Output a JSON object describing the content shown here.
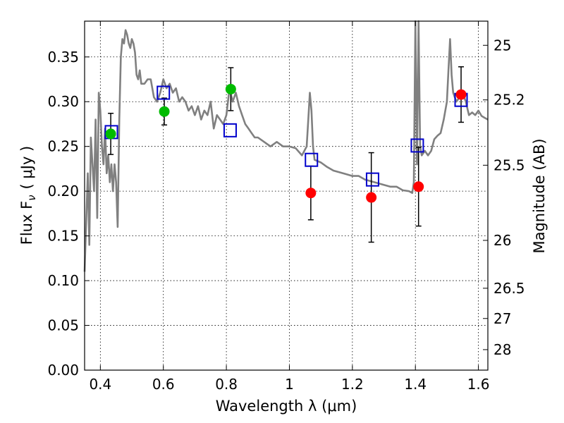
{
  "chart_data": {
    "type": "scatter",
    "xlabel": "Wavelength  λ (μm)",
    "ylabel_left": "Flux  F",
    "ylabel_left_sub": "ν",
    "ylabel_left_unit": "(  μJy )",
    "ylabel_right": "Magnitude (AB)",
    "xlim": [
      0.35,
      1.63
    ],
    "ylim": [
      0.0,
      0.39
    ],
    "grid": true,
    "x_ticks": [
      {
        "value": 0.4,
        "label": "0.4"
      },
      {
        "value": 0.6,
        "label": "0.6"
      },
      {
        "value": 0.8,
        "label": "0.8"
      },
      {
        "value": 1.0,
        "label": "1"
      },
      {
        "value": 1.2,
        "label": "1.2"
      },
      {
        "value": 1.4,
        "label": "1.4"
      },
      {
        "value": 1.6,
        "label": "1.6"
      }
    ],
    "y_ticks": [
      {
        "value": 0.0,
        "label": "0.00"
      },
      {
        "value": 0.05,
        "label": "0.05"
      },
      {
        "value": 0.1,
        "label": "0.10"
      },
      {
        "value": 0.15,
        "label": "0.15"
      },
      {
        "value": 0.2,
        "label": "0.20"
      },
      {
        "value": 0.25,
        "label": "0.25"
      },
      {
        "value": 0.3,
        "label": "0.30"
      },
      {
        "value": 0.35,
        "label": "0.35"
      }
    ],
    "y_ticks_right": [
      {
        "flux": 0.363,
        "label": "25"
      },
      {
        "flux": 0.302,
        "label": "25.2"
      },
      {
        "flux": 0.229,
        "label": "25.5"
      },
      {
        "flux": 0.145,
        "label": "26"
      },
      {
        "flux": 0.0915,
        "label": "26.5"
      },
      {
        "flux": 0.0577,
        "label": "27"
      },
      {
        "flux": 0.0229,
        "label": "28"
      }
    ],
    "series": [
      {
        "name": "model-spectrum",
        "kind": "line",
        "color": "#808080",
        "x": [
          0.35,
          0.36,
          0.365,
          0.37,
          0.375,
          0.38,
          0.385,
          0.39,
          0.395,
          0.4,
          0.405,
          0.41,
          0.415,
          0.42,
          0.425,
          0.43,
          0.435,
          0.44,
          0.445,
          0.45,
          0.455,
          0.46,
          0.465,
          0.47,
          0.475,
          0.48,
          0.485,
          0.49,
          0.495,
          0.5,
          0.505,
          0.51,
          0.515,
          0.52,
          0.525,
          0.53,
          0.54,
          0.55,
          0.56,
          0.57,
          0.58,
          0.59,
          0.6,
          0.61,
          0.62,
          0.63,
          0.64,
          0.65,
          0.66,
          0.67,
          0.68,
          0.69,
          0.7,
          0.71,
          0.72,
          0.73,
          0.74,
          0.75,
          0.76,
          0.77,
          0.78,
          0.79,
          0.8,
          0.81,
          0.82,
          0.83,
          0.84,
          0.85,
          0.86,
          0.87,
          0.88,
          0.89,
          0.9,
          0.92,
          0.94,
          0.96,
          0.98,
          1.0,
          1.02,
          1.04,
          1.055,
          1.06,
          1.065,
          1.07,
          1.075,
          1.08,
          1.1,
          1.12,
          1.14,
          1.16,
          1.18,
          1.2,
          1.22,
          1.24,
          1.26,
          1.28,
          1.3,
          1.32,
          1.34,
          1.36,
          1.38,
          1.39,
          1.395,
          1.4,
          1.405,
          1.41,
          1.415,
          1.42,
          1.43,
          1.44,
          1.45,
          1.46,
          1.47,
          1.48,
          1.49,
          1.5,
          1.505,
          1.51,
          1.515,
          1.52,
          1.53,
          1.54,
          1.55,
          1.56,
          1.57,
          1.58,
          1.59,
          1.6,
          1.61,
          1.62,
          1.63
        ],
        "y": [
          0.11,
          0.22,
          0.14,
          0.26,
          0.23,
          0.2,
          0.28,
          0.17,
          0.31,
          0.29,
          0.25,
          0.23,
          0.27,
          0.22,
          0.24,
          0.21,
          0.23,
          0.2,
          0.23,
          0.21,
          0.16,
          0.28,
          0.35,
          0.37,
          0.365,
          0.38,
          0.375,
          0.365,
          0.36,
          0.37,
          0.365,
          0.355,
          0.33,
          0.325,
          0.335,
          0.32,
          0.32,
          0.325,
          0.325,
          0.305,
          0.3,
          0.31,
          0.325,
          0.315,
          0.32,
          0.31,
          0.315,
          0.3,
          0.305,
          0.3,
          0.29,
          0.295,
          0.285,
          0.295,
          0.28,
          0.29,
          0.285,
          0.3,
          0.27,
          0.285,
          0.28,
          0.275,
          0.285,
          0.315,
          0.3,
          0.31,
          0.295,
          0.285,
          0.275,
          0.27,
          0.265,
          0.26,
          0.26,
          0.255,
          0.25,
          0.255,
          0.25,
          0.25,
          0.248,
          0.24,
          0.25,
          0.28,
          0.31,
          0.29,
          0.25,
          0.235,
          0.232,
          0.227,
          0.223,
          0.221,
          0.219,
          0.217,
          0.217,
          0.213,
          0.211,
          0.209,
          0.207,
          0.205,
          0.205,
          0.201,
          0.2,
          0.198,
          0.21,
          0.39,
          0.23,
          0.39,
          0.25,
          0.24,
          0.245,
          0.24,
          0.245,
          0.258,
          0.262,
          0.265,
          0.28,
          0.3,
          0.335,
          0.37,
          0.33,
          0.31,
          0.3,
          0.305,
          0.31,
          0.3,
          0.285,
          0.288,
          0.285,
          0.29,
          0.284,
          0.282,
          0.28
        ]
      },
      {
        "name": "observed-green",
        "kind": "points",
        "color": "#00bb00",
        "x": [
          0.433,
          0.603,
          0.814
        ],
        "y": [
          0.264,
          0.289,
          0.314
        ],
        "yerr": [
          0.023,
          0.015,
          0.024
        ]
      },
      {
        "name": "observed-red",
        "kind": "points",
        "color": "#ff0000",
        "x": [
          1.068,
          1.26,
          1.41,
          1.545
        ],
        "y": [
          0.198,
          0.193,
          0.205,
          0.308
        ],
        "yerr": [
          0.03,
          0.05,
          0.044,
          0.031
        ]
      },
      {
        "name": "model-synthetic",
        "kind": "open-squares",
        "color": "#0000cc",
        "x": [
          0.435,
          0.6,
          0.812,
          1.07,
          1.264,
          1.406,
          1.545
        ],
        "y": [
          0.266,
          0.31,
          0.268,
          0.235,
          0.213,
          0.251,
          0.302
        ]
      }
    ]
  }
}
